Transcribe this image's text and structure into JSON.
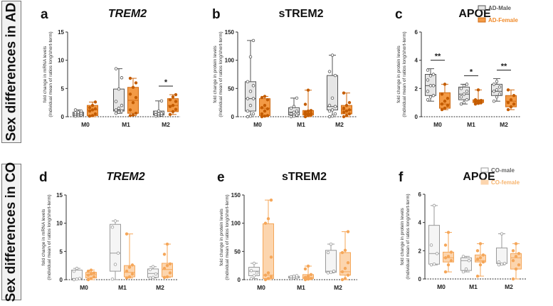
{
  "row_labels": {
    "ad": "Sex differences in AD",
    "co": "Sex differences in CO"
  },
  "colors": {
    "ad_male_fill": "#e6e6e6",
    "ad_male_stroke": "#555555",
    "ad_female_fill": "#f39a45",
    "ad_female_stroke": "#cf6a12",
    "ad_female_point": "#c45c00",
    "co_male_fill": "#f5f5f5",
    "co_male_stroke": "#9a9a9a",
    "co_female_fill": "#fcd5ae",
    "co_female_stroke": "#f5a75a"
  },
  "legends": {
    "ad": [
      {
        "label": "AD-Male",
        "color": "#555555"
      },
      {
        "label": "AD-Female",
        "color": "#f08a2a"
      }
    ],
    "co": [
      {
        "label": "CO-male",
        "color": "#666666"
      },
      {
        "label": "CO-female",
        "color": "#f7b46e"
      }
    ]
  },
  "chart_data": [
    {
      "panel": "a",
      "type": "box",
      "title": "TREM2",
      "title_italic": true,
      "row": "ad",
      "ylabel": [
        "fold change in mRNA levels",
        "(Individual mean of ratios long/short-term)"
      ],
      "ylim": [
        0,
        15
      ],
      "yticks": [
        0,
        5,
        10,
        15
      ],
      "categories": [
        "M0",
        "M1",
        "M2"
      ],
      "significance": [
        null,
        null,
        "*"
      ],
      "series": {
        "male": [
          {
            "min": 0,
            "q1": 0.2,
            "med": 0.5,
            "q3": 0.8,
            "max": 1.2,
            "points": [
              0.1,
              0.2,
              0.3,
              0.4,
              0.5,
              0.6,
              0.7,
              0.8,
              1.0,
              1.2
            ]
          },
          {
            "min": 0.6,
            "q1": 1.0,
            "med": 1.2,
            "q3": 4.9,
            "max": 8.5,
            "points": [
              0.6,
              0.8,
              1.0,
              1.2,
              1.5,
              2.0,
              2.7,
              4.9,
              6.9,
              8.5
            ]
          },
          {
            "min": 0.1,
            "q1": 0.3,
            "med": 0.5,
            "q3": 1.0,
            "max": 2.8,
            "points": [
              0.1,
              0.2,
              0.3,
              0.4,
              0.5,
              0.6,
              0.8,
              1.0,
              2.8
            ]
          }
        ],
        "female": [
          {
            "min": 0,
            "q1": 0.2,
            "med": 1.2,
            "q3": 2.0,
            "max": 2.6,
            "points": [
              0.1,
              0.2,
              0.5,
              1.0,
              1.2,
              1.4,
              1.6,
              2.0,
              2.6
            ]
          },
          {
            "min": 0.2,
            "q1": 0.6,
            "med": 2.9,
            "q3": 5.2,
            "max": 6.8,
            "points": [
              0.2,
              0.3,
              0.6,
              1.2,
              2.5,
              3.4,
              4.0,
              5.2,
              6.0,
              6.8
            ]
          },
          {
            "min": 0.4,
            "q1": 0.9,
            "med": 2.0,
            "q3": 3.2,
            "max": 3.9,
            "points": [
              0.4,
              0.9,
              1.3,
              1.8,
              2.0,
              2.7,
              3.0,
              3.5,
              3.9
            ]
          }
        ]
      }
    },
    {
      "panel": "b",
      "type": "box",
      "title": "sTREM2",
      "title_italic": false,
      "row": "ad",
      "ylabel": [
        "fold change in protein levels",
        "(Individual mean of ratios long/short-term)"
      ],
      "ylim": [
        0,
        150
      ],
      "yticks": [
        0,
        50,
        100,
        150
      ],
      "categories": [
        "M0",
        "M1",
        "M2"
      ],
      "significance": [
        null,
        null,
        null
      ],
      "series": {
        "male": [
          {
            "min": 0,
            "q1": 10,
            "med": 32,
            "q3": 62,
            "max": 135,
            "points": [
              0,
              1,
              5,
              10,
              20,
              32,
              32,
              45,
              55,
              62,
              106,
              135
            ]
          },
          {
            "min": 0,
            "q1": 3,
            "med": 8,
            "q3": 16,
            "max": 33,
            "points": [
              0,
              1,
              3,
              5,
              8,
              10,
              15,
              18,
              33
            ]
          },
          {
            "min": 0,
            "q1": 12,
            "med": 18,
            "q3": 73,
            "max": 109,
            "points": [
              0,
              1,
              5,
              10,
              12,
              18,
              20,
              33,
              73,
              80,
              109
            ]
          }
        ],
        "female": [
          {
            "min": 0,
            "q1": 2,
            "med": 15,
            "q3": 32,
            "max": 36,
            "points": [
              0,
              1,
              2,
              5,
              10,
              14,
              16,
              20,
              30,
              34,
              36
            ]
          },
          {
            "min": 0,
            "q1": 3,
            "med": 6,
            "q3": 11,
            "max": 47,
            "points": [
              0,
              2,
              3,
              4,
              5,
              6,
              8,
              10,
              11,
              22,
              47
            ]
          },
          {
            "min": 0,
            "q1": 5,
            "med": 12,
            "q3": 20,
            "max": 42,
            "points": [
              0,
              2,
              5,
              8,
              10,
              12,
              15,
              20,
              25,
              42
            ]
          }
        ]
      }
    },
    {
      "panel": "c",
      "type": "box",
      "title": "APOE",
      "title_italic": false,
      "row": "ad",
      "ylabel": [
        "fold change in protein levels",
        "(Individual mean of ratios long/short-term)"
      ],
      "ylim": [
        0,
        6
      ],
      "yticks": [
        0,
        2,
        4,
        6
      ],
      "categories": [
        "M0",
        "M1",
        "M2"
      ],
      "significance": [
        "**",
        "*",
        "**"
      ],
      "series": {
        "male": [
          {
            "min": 1.1,
            "q1": 1.5,
            "med": 2.2,
            "q3": 3.0,
            "max": 3.4,
            "points": [
              1.2,
              1.4,
              1.5,
              1.8,
              2.2,
              2.2,
              2.6,
              2.9,
              3.0,
              3.3
            ]
          },
          {
            "min": 0.9,
            "q1": 1.2,
            "med": 1.6,
            "q3": 2.1,
            "max": 2.3,
            "points": [
              0.9,
              1.0,
              1.2,
              1.4,
              1.6,
              1.8,
              2.0,
              2.2,
              2.3
            ]
          },
          {
            "min": 1.1,
            "q1": 1.5,
            "med": 1.8,
            "q3": 2.3,
            "max": 2.7,
            "points": [
              1.1,
              1.4,
              1.6,
              1.8,
              1.9,
              2.1,
              2.3,
              2.5
            ]
          }
        ],
        "female": [
          {
            "min": 0.5,
            "q1": 0.6,
            "med": 0.9,
            "q3": 1.7,
            "max": 2.3,
            "points": [
              0.5,
              0.6,
              0.8,
              0.9,
              1.1,
              1.3,
              1.6,
              2.3
            ]
          },
          {
            "min": 0.9,
            "q1": 1.0,
            "med": 1.1,
            "q3": 1.2,
            "max": 1.9,
            "points": [
              0.9,
              0.95,
              1.0,
              1.05,
              1.1,
              1.15,
              1.2,
              1.9
            ]
          },
          {
            "min": 0.5,
            "q1": 0.7,
            "med": 1.1,
            "q3": 1.5,
            "max": 1.9,
            "points": [
              0.5,
              0.7,
              0.9,
              1.0,
              1.2,
              1.5,
              1.9
            ]
          }
        ]
      }
    },
    {
      "panel": "d",
      "type": "box",
      "title": "TREM2",
      "title_italic": true,
      "row": "co",
      "ylabel": [
        "fold change in mRNA levels",
        "(Individual mean of ratios long/short-term)"
      ],
      "ylim": [
        0,
        15
      ],
      "yticks": [
        0,
        5,
        10,
        15
      ],
      "categories": [
        "M0",
        "M1",
        "M2"
      ],
      "significance": [
        null,
        null,
        null
      ],
      "series": {
        "male": [
          {
            "min": 0,
            "q1": 0.1,
            "med": 0.2,
            "q3": 1.7,
            "max": 2.0,
            "points": [
              0,
              0.1,
              0.2,
              1.5,
              2.0
            ]
          },
          {
            "min": 0,
            "q1": 1.5,
            "med": 4.7,
            "q3": 9.8,
            "max": 10.4,
            "points": [
              0.1,
              2.7,
              4.7,
              9.3,
              10.4
            ]
          },
          {
            "min": 0.3,
            "q1": 0.4,
            "med": 1.1,
            "q3": 1.9,
            "max": 2.3,
            "points": [
              0.3,
              0.4,
              1.0,
              1.8,
              2.3
            ]
          }
        ],
        "female": [
          {
            "min": 0,
            "q1": 0.3,
            "med": 0.9,
            "q3": 1.3,
            "max": 1.7,
            "points": [
              0,
              0.2,
              0.5,
              0.8,
              1.0,
              1.2,
              1.5,
              1.7
            ]
          },
          {
            "min": 0.3,
            "q1": 0.5,
            "med": 1.3,
            "q3": 2.5,
            "max": 8.1,
            "points": [
              0.3,
              0.5,
              1.0,
              1.5,
              2.2,
              2.6,
              8.1
            ]
          },
          {
            "min": 0.4,
            "q1": 0.5,
            "med": 1.8,
            "q3": 2.9,
            "max": 6.3,
            "points": [
              0.4,
              0.5,
              1.2,
              2.0,
              2.5,
              2.8,
              4.5,
              6.3
            ]
          }
        ]
      }
    },
    {
      "panel": "e",
      "type": "box",
      "title": "sTREM2",
      "title_italic": false,
      "row": "co",
      "ylabel": [
        "fold change in protein levels",
        "(Individual mean of ratios long/short-term)"
      ],
      "ylim": [
        0,
        150
      ],
      "yticks": [
        0,
        50,
        100,
        150
      ],
      "categories": [
        "M0",
        "M1",
        "M2"
      ],
      "significance": [
        null,
        null,
        null
      ],
      "series": {
        "male": [
          {
            "min": 2,
            "q1": 7,
            "med": 15,
            "q3": 22,
            "max": 29,
            "points": [
              2,
              7,
              12,
              16,
              29
            ]
          },
          {
            "min": 2,
            "q1": 3,
            "med": 4,
            "q3": 6,
            "max": 7,
            "points": [
              2,
              3,
              4,
              5,
              6,
              7
            ]
          },
          {
            "min": 12,
            "q1": 13,
            "med": 15,
            "q3": 52,
            "max": 63,
            "points": [
              12,
              13,
              15,
              48,
              63
            ]
          }
        ],
        "female": [
          {
            "min": 0,
            "q1": 2,
            "med": 8,
            "q3": 99,
            "max": 141,
            "points": [
              0,
              2,
              5,
              8,
              12,
              40,
              100,
              108,
              141
            ]
          },
          {
            "min": 0,
            "q1": 2,
            "med": 4,
            "q3": 9,
            "max": 24,
            "points": [
              0,
              1,
              2,
              4,
              6,
              9,
              19,
              24
            ]
          },
          {
            "min": 0,
            "q1": 8,
            "med": 14,
            "q3": 48,
            "max": 85,
            "points": [
              0,
              2,
              8,
              14,
              20,
              30,
              48,
              52,
              85
            ]
          }
        ]
      }
    },
    {
      "panel": "f",
      "type": "box",
      "title": "APOE",
      "title_italic": false,
      "row": "co",
      "ylabel": [
        "fold change in protein levels",
        "(Individual mean of ratios long/short-term)"
      ],
      "ylim": [
        0,
        6
      ],
      "yticks": [
        0,
        2,
        4,
        6
      ],
      "categories": [
        "M0",
        "M1",
        "M2"
      ],
      "significance": [
        null,
        null,
        null
      ],
      "series": {
        "male": [
          {
            "min": 1.0,
            "q1": 1.05,
            "med": 1.8,
            "q3": 3.8,
            "max": 5.2,
            "points": [
              1.0,
              1.05,
              1.8,
              2.4,
              5.2
            ]
          },
          {
            "min": 0.5,
            "q1": 0.6,
            "med": 1.3,
            "q3": 1.5,
            "max": 1.6,
            "points": [
              0.5,
              0.7,
              1.3,
              1.6
            ]
          },
          {
            "min": 1.0,
            "q1": 1.1,
            "med": 1.1,
            "q3": 2.2,
            "max": 3.2,
            "points": [
              1.0,
              1.05,
              1.1,
              1.2,
              3.2
            ]
          }
        ],
        "female": [
          {
            "min": 0.5,
            "q1": 1.2,
            "med": 1.5,
            "q3": 1.9,
            "max": 3.3,
            "points": [
              0.5,
              1.0,
              1.3,
              1.5,
              1.6,
              1.9,
              2.4,
              3.3
            ]
          },
          {
            "min": 0.2,
            "q1": 1.2,
            "med": 1.3,
            "q3": 1.7,
            "max": 2.5,
            "points": [
              0.2,
              1.0,
              1.2,
              1.4,
              1.5,
              1.7,
              2.0,
              2.5
            ]
          },
          {
            "min": 0,
            "q1": 0.7,
            "med": 1.5,
            "q3": 1.8,
            "max": 2.5,
            "points": [
              0,
              0.7,
              1.0,
              1.3,
              1.6,
              1.8,
              2.0,
              2.5
            ]
          }
        ]
      }
    }
  ]
}
